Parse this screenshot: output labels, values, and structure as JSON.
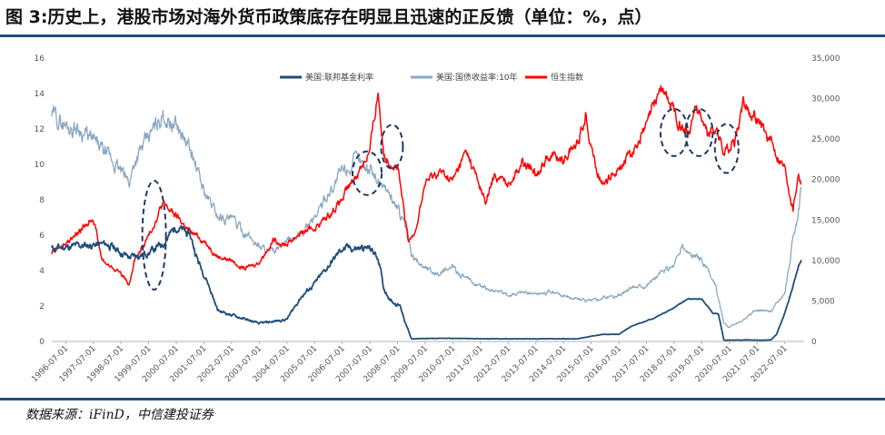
{
  "header": {
    "title": "图 3:历史上，港股市场对海外货币政策底存在明显且迅速的正反馈（单位：%，点）"
  },
  "footer": {
    "source": "数据来源：iFinD，中信建投证券"
  },
  "colors": {
    "fed": "#1f4e79",
    "treasury": "#8aa8c0",
    "hsi": "#ff0000",
    "rule": "#1f4e79",
    "ellipse": "#1f3864"
  },
  "chart_data": {
    "type": "line",
    "title": "",
    "xlabel": "",
    "ylabel": "",
    "ylim_left": [
      0,
      16
    ],
    "ylim_right": [
      0,
      35000
    ],
    "y_ticks_left": [
      "0",
      "2",
      "4",
      "6",
      "8",
      "10",
      "12",
      "14",
      "16"
    ],
    "y_ticks_right": [
      "0",
      "5,000",
      "10,000",
      "15,000",
      "20,000",
      "25,000",
      "30,000",
      "35,000"
    ],
    "x_ticks": [
      "1996-07-01",
      "1997-07-01",
      "1998-07-01",
      "1999-07-01",
      "2000-07-01",
      "2001-07-01",
      "2002-07-01",
      "2003-07-01",
      "2004-07-01",
      "2005-07-01",
      "2006-07-01",
      "2007-07-01",
      "2008-07-01",
      "2009-07-01",
      "2010-07-01",
      "2011-07-01",
      "2012-07-01",
      "2013-07-01",
      "2014-07-01",
      "2015-07-01",
      "2016-07-01",
      "2017-07-01",
      "2018-07-01",
      "2019-07-01",
      "2020-07-01",
      "2021-07-01",
      "2022-07-01"
    ],
    "legend_position": "top-center",
    "series": [
      {
        "name": "美国:联邦基金利率",
        "axis": "left",
        "x": [
          1996.0,
          1997.0,
          1998.0,
          1998.8,
          1999.5,
          2000.0,
          2000.5,
          2001.0,
          2001.3,
          2001.6,
          2002.0,
          2003.0,
          2003.5,
          2004.5,
          2005.0,
          2005.5,
          2006.0,
          2006.5,
          2007.0,
          2007.5,
          2007.8,
          2008.0,
          2008.3,
          2008.6,
          2008.8,
          2009.0,
          2010.0,
          2012.0,
          2015.0,
          2015.9,
          2016.5,
          2017.0,
          2017.5,
          2018.0,
          2018.5,
          2019.0,
          2019.5,
          2019.9,
          2020.1,
          2020.3,
          2021.0,
          2022.0,
          2022.2,
          2022.5,
          2022.8,
          2023.0,
          2023.1
        ],
        "values": [
          5.25,
          5.4,
          5.5,
          4.75,
          5.0,
          5.5,
          6.5,
          6.0,
          4.5,
          3.5,
          1.75,
          1.25,
          1.0,
          1.25,
          2.5,
          3.25,
          4.25,
          5.25,
          5.25,
          5.25,
          4.75,
          3.0,
          2.25,
          2.0,
          1.0,
          0.15,
          0.18,
          0.15,
          0.15,
          0.4,
          0.4,
          0.9,
          1.15,
          1.5,
          1.9,
          2.4,
          2.4,
          1.6,
          1.55,
          0.08,
          0.08,
          0.08,
          0.4,
          1.6,
          3.1,
          4.3,
          4.6
        ]
      },
      {
        "name": "美国:国债收益率:10年",
        "axis": "left",
        "x": [
          1996.0,
          1996.5,
          1997.0,
          1997.5,
          1998.0,
          1998.5,
          1998.8,
          1999.0,
          1999.5,
          2000.0,
          2000.5,
          2001.0,
          2001.5,
          2002.0,
          2002.5,
          2003.0,
          2003.5,
          2004.0,
          2004.5,
          2005.0,
          2005.5,
          2006.0,
          2006.5,
          2007.0,
          2007.5,
          2008.0,
          2008.5,
          2008.9,
          2009.0,
          2009.5,
          2010.0,
          2010.5,
          2011.0,
          2011.5,
          2012.0,
          2012.5,
          2013.0,
          2013.5,
          2014.0,
          2014.5,
          2015.0,
          2015.5,
          2016.0,
          2016.5,
          2017.0,
          2017.5,
          2018.0,
          2018.5,
          2018.8,
          2019.0,
          2019.5,
          2020.0,
          2020.3,
          2020.5,
          2021.0,
          2021.5,
          2022.0,
          2022.5,
          2022.8,
          2023.0,
          2023.1
        ],
        "values": [
          12.8,
          12.2,
          12.0,
          11.3,
          10.5,
          9.6,
          9.0,
          10.2,
          11.5,
          12.8,
          12.2,
          10.8,
          8.5,
          7.1,
          6.9,
          6.1,
          5.4,
          5.0,
          5.6,
          6.0,
          7.0,
          8.4,
          9.6,
          10.2,
          9.8,
          8.8,
          7.6,
          5.9,
          4.8,
          4.2,
          3.8,
          4.2,
          3.5,
          3.1,
          2.9,
          2.6,
          2.8,
          2.7,
          2.8,
          2.6,
          2.4,
          2.3,
          2.5,
          2.6,
          3.1,
          3.2,
          3.8,
          4.3,
          5.4,
          5.0,
          4.6,
          3.1,
          1.0,
          0.8,
          1.2,
          1.8,
          1.7,
          2.8,
          5.8,
          7.3,
          8.6
        ]
      },
      {
        "name": "恒生指数",
        "axis": "right",
        "x": [
          1996.0,
          1996.5,
          1997.0,
          1997.5,
          1997.8,
          1998.0,
          1998.5,
          1998.8,
          1999.0,
          1999.5,
          2000.0,
          2000.5,
          2001.0,
          2001.5,
          2002.0,
          2002.5,
          2003.0,
          2003.5,
          2004.0,
          2004.5,
          2005.0,
          2005.5,
          2006.0,
          2006.5,
          2007.0,
          2007.5,
          2007.8,
          2008.0,
          2008.5,
          2008.9,
          2009.2,
          2009.5,
          2010.0,
          2010.5,
          2011.0,
          2011.7,
          2012.0,
          2012.5,
          2013.0,
          2013.5,
          2014.0,
          2014.5,
          2015.0,
          2015.3,
          2015.7,
          2016.0,
          2016.5,
          2017.0,
          2017.5,
          2018.0,
          2018.5,
          2019.0,
          2019.3,
          2019.7,
          2020.0,
          2020.3,
          2020.7,
          2021.0,
          2021.5,
          2022.0,
          2022.5,
          2022.8,
          2023.0,
          2023.1
        ],
        "values": [
          11000,
          12000,
          13500,
          15500,
          10200,
          9500,
          8500,
          7000,
          10000,
          13000,
          17000,
          15500,
          13500,
          12500,
          10500,
          10000,
          9000,
          9800,
          12500,
          12000,
          13500,
          14000,
          15500,
          17500,
          20500,
          23500,
          31000,
          23000,
          21500,
          12000,
          14500,
          19500,
          21000,
          19800,
          23500,
          17000,
          20500,
          19500,
          22000,
          21000,
          23000,
          22500,
          24500,
          28000,
          21000,
          19500,
          21500,
          23500,
          26500,
          31500,
          28500,
          25500,
          29500,
          25500,
          26500,
          23500,
          24500,
          29500,
          27500,
          24500,
          21500,
          16500,
          21000,
          19500
        ]
      }
    ],
    "annotations": [
      {
        "type": "dashed-ellipse",
        "x": 1999.7,
        "y_left": 6.0
      },
      {
        "type": "dashed-ellipse",
        "x": 2007.4,
        "y_left": 9.5
      },
      {
        "type": "dashed-ellipse",
        "x": 2008.3,
        "y_left": 11.0
      },
      {
        "type": "dashed-ellipse",
        "x": 2018.5,
        "y_left": 11.8
      },
      {
        "type": "dashed-ellipse",
        "x": 2019.4,
        "y_left": 11.8
      },
      {
        "type": "dashed-ellipse",
        "x": 2020.4,
        "y_left": 10.9
      }
    ]
  }
}
